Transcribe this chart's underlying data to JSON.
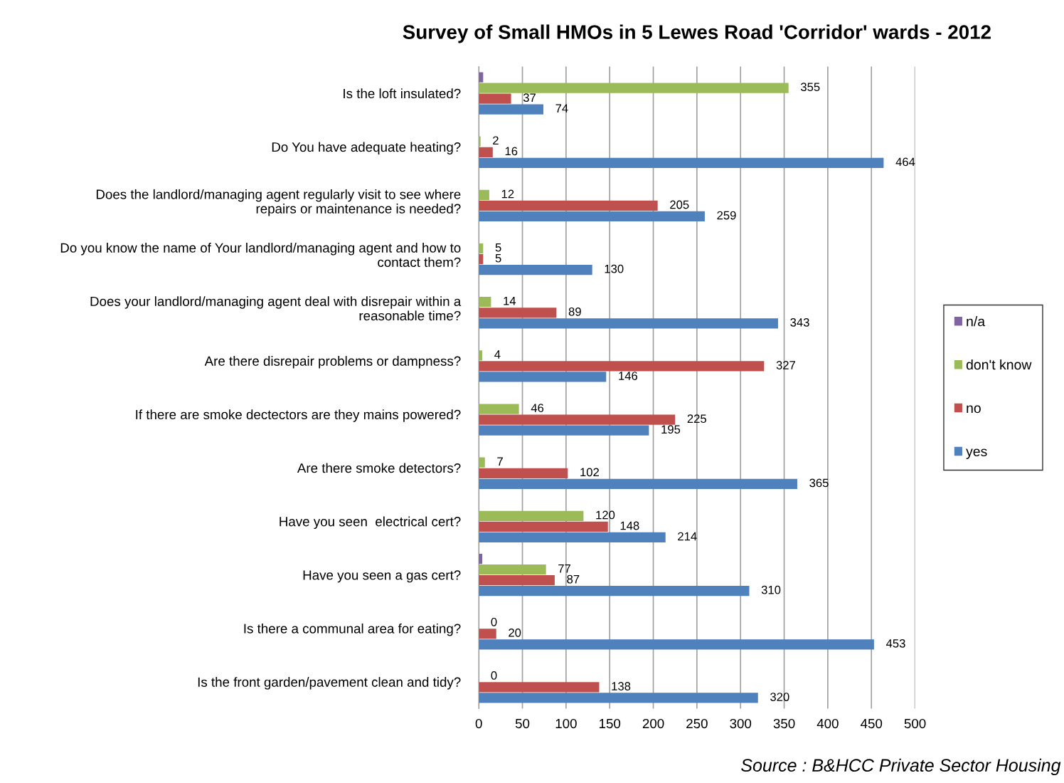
{
  "chart_data": {
    "type": "bar",
    "orientation": "horizontal",
    "title": "Survey of Small HMOs in 5 Lewes Road 'Corridor' wards - 2012",
    "categories": [
      "Is the loft insulated?",
      "Do You have adequate heating?",
      "Does the landlord/managing agent regularly visit to see where\nrepairs or maintenance is needed?",
      "Do you know the name of Your landlord/managing agent and how to\ncontact them?",
      "Does your landlord/managing agent deal with disrepair within a\nreasonable time?",
      "Are there disrepair problems or dampness?",
      "If there are smoke dectectors are they mains powered?",
      "Are there smoke detectors?",
      "Have you seen  electrical cert?",
      "Have you seen a gas cert?",
      "Is there a communal area for eating?",
      "Is the front garden/pavement clean and tidy?"
    ],
    "series": [
      {
        "name": "n/a",
        "color": "#8064a2",
        "values": [
          5,
          null,
          null,
          null,
          null,
          null,
          null,
          null,
          null,
          4,
          null,
          null
        ],
        "value_labels": [
          null,
          null,
          null,
          null,
          null,
          null,
          null,
          null,
          null,
          null,
          null,
          null
        ]
      },
      {
        "name": "don't know",
        "color": "#9bbb59",
        "values": [
          355,
          2,
          12,
          5,
          14,
          4,
          46,
          7,
          120,
          77,
          0,
          0
        ],
        "value_labels": [
          "355",
          "2",
          "12",
          "5",
          "14",
          "4",
          "46",
          "7",
          "120",
          "77",
          "0",
          "0"
        ]
      },
      {
        "name": "no",
        "color": "#c0504d",
        "values": [
          37,
          16,
          205,
          5,
          89,
          327,
          225,
          102,
          148,
          87,
          20,
          138
        ],
        "value_labels": [
          "37",
          "16",
          "205",
          "5",
          "89",
          "327",
          "225",
          "102",
          "148",
          "87",
          "20",
          "138"
        ]
      },
      {
        "name": "yes",
        "color": "#4f81bd",
        "values": [
          74,
          464,
          259,
          130,
          343,
          146,
          195,
          365,
          214,
          310,
          453,
          320
        ],
        "value_labels": [
          "74",
          "464",
          "259",
          "130",
          "343",
          "146",
          "195",
          "365",
          "214",
          "310",
          "453",
          "320"
        ]
      }
    ],
    "xlim": [
      0,
      500
    ],
    "xticks": [
      0,
      50,
      100,
      150,
      200,
      250,
      300,
      350,
      400,
      450,
      500
    ],
    "grid": "x",
    "legend": "right",
    "annotations": [
      "Source : B&HCC Private Sector Housing"
    ]
  }
}
